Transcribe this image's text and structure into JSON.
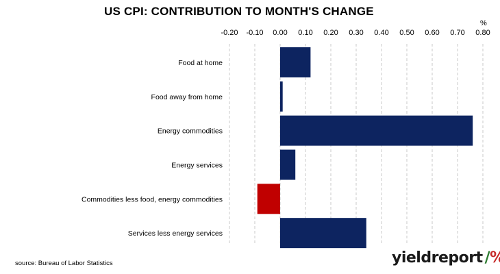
{
  "chart_data": {
    "type": "bar",
    "orientation": "horizontal",
    "title": "US CPI: CONTRIBUTION TO MONTH'S CHANGE",
    "unit": "%",
    "categories": [
      "Food at home",
      "Food away from home",
      "Energy commodities",
      "Energy services",
      "Commodities less food, energy commodities",
      "Services less energy services"
    ],
    "values": [
      0.12,
      0.01,
      0.76,
      0.06,
      -0.09,
      0.34
    ],
    "xlim": [
      -0.2,
      0.8
    ],
    "xticks": [
      "-0.20",
      "-0.10",
      "0.00",
      "0.10",
      "0.20",
      "0.30",
      "0.40",
      "0.50",
      "0.60",
      "0.70",
      "0.80"
    ],
    "axis_position": "top",
    "grid": "vertical dashed",
    "legend": "none",
    "colors": {
      "positive": "#0d2460",
      "negative": "#c00000",
      "grid": "#c8c8c8"
    }
  },
  "source": "source: Bureau of Labor Statistics",
  "logo": {
    "text": "yieldreport",
    "symbol": "%"
  }
}
